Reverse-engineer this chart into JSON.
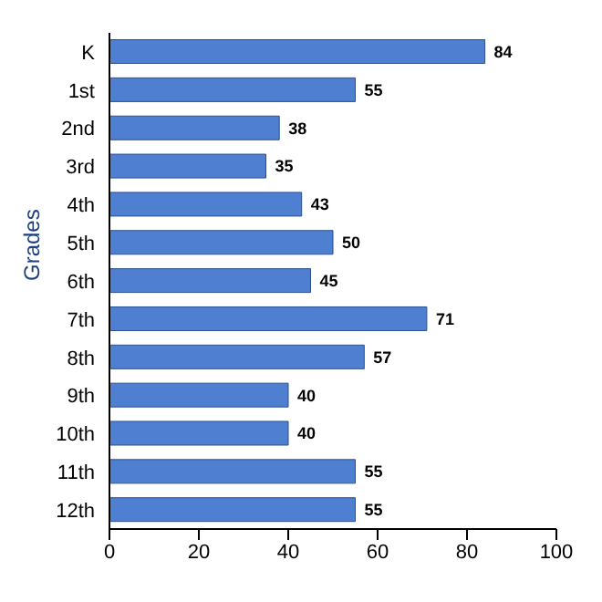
{
  "chart_data": {
    "type": "bar",
    "orientation": "horizontal",
    "ylabel": "Grades",
    "categories": [
      "K",
      "1st",
      "2nd",
      "3rd",
      "4th",
      "5th",
      "6th",
      "7th",
      "8th",
      "9th",
      "10th",
      "11th",
      "12th"
    ],
    "values": [
      84,
      55,
      38,
      35,
      43,
      50,
      45,
      71,
      57,
      40,
      40,
      55,
      55
    ],
    "color": "#4f7fd0",
    "data_labels": true,
    "xlim": [
      0,
      100
    ],
    "xticks": [
      0,
      20,
      40,
      60,
      80,
      100
    ],
    "grid": false,
    "legend": false
  }
}
